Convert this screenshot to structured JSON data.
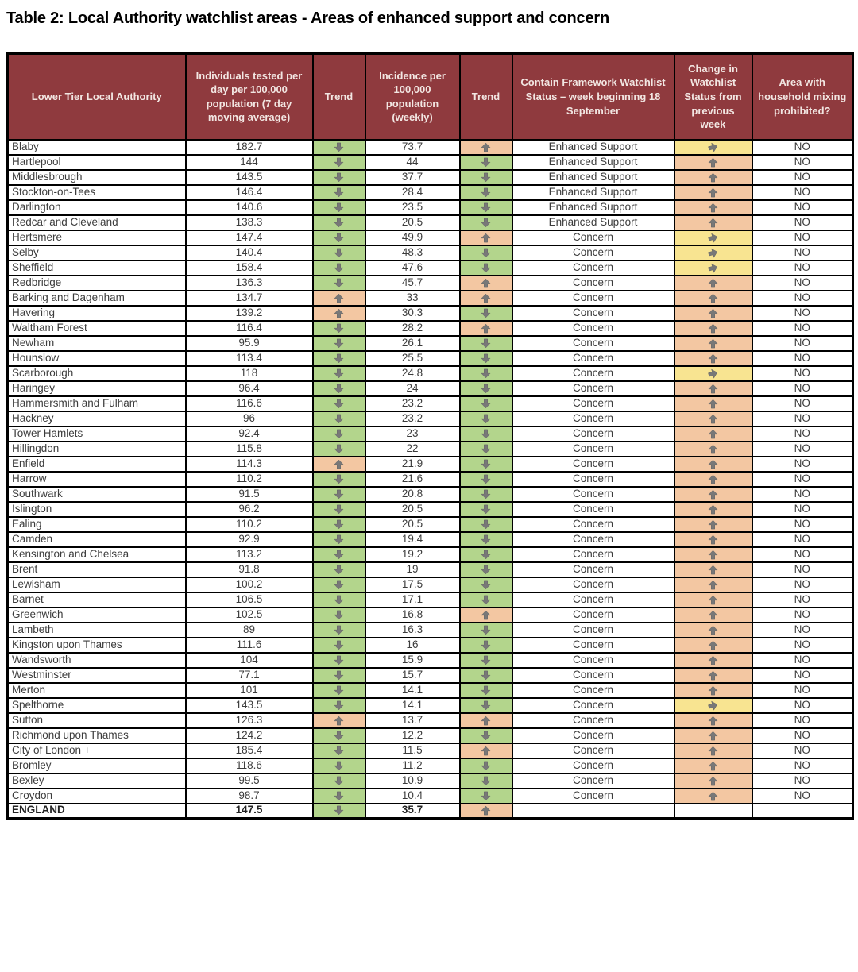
{
  "title": "Table 2: Local Authority watchlist areas - Areas of enhanced support and concern",
  "colors": {
    "header_bg": "#8f3a3e",
    "header_text": "#f2e6e2",
    "green_cell": "#b3d58c",
    "peach_cell": "#f3c7a2",
    "yellow_cell": "#f8e491",
    "arrow": "#787878",
    "grid": "#000000",
    "cell_text": "#3c3c3c"
  },
  "table": {
    "columns": [
      "Lower Tier Local Authority",
      "Individuals tested per day per 100,000 population (7 day moving average)",
      "Trend",
      "Incidence per 100,000 population (weekly)",
      "Trend",
      "Contain Framework Watchlist Status – week beginning 18 September",
      "Change in Watchlist Status from previous week",
      "Area with household mixing prohibited?"
    ],
    "rows": [
      {
        "authority": "Blaby",
        "tested": "182.7",
        "trend1": "down",
        "incidence": "73.7",
        "trend2": "up",
        "status": "Enhanced Support",
        "change": "same",
        "mixing": "NO"
      },
      {
        "authority": "Hartlepool",
        "tested": "144",
        "trend1": "down",
        "incidence": "44",
        "trend2": "down",
        "status": "Enhanced Support",
        "change": "up",
        "mixing": "NO"
      },
      {
        "authority": "Middlesbrough",
        "tested": "143.5",
        "trend1": "down",
        "incidence": "37.7",
        "trend2": "down",
        "status": "Enhanced Support",
        "change": "up",
        "mixing": "NO"
      },
      {
        "authority": "Stockton-on-Tees",
        "tested": "146.4",
        "trend1": "down",
        "incidence": "28.4",
        "trend2": "down",
        "status": "Enhanced Support",
        "change": "up",
        "mixing": "NO"
      },
      {
        "authority": "Darlington",
        "tested": "140.6",
        "trend1": "down",
        "incidence": "23.5",
        "trend2": "down",
        "status": "Enhanced Support",
        "change": "up",
        "mixing": "NO"
      },
      {
        "authority": "Redcar and Cleveland",
        "tested": "138.3",
        "trend1": "down",
        "incidence": "20.5",
        "trend2": "down",
        "status": "Enhanced Support",
        "change": "up",
        "mixing": "NO"
      },
      {
        "authority": "Hertsmere",
        "tested": "147.4",
        "trend1": "down",
        "incidence": "49.9",
        "trend2": "up",
        "status": "Concern",
        "change": "same",
        "mixing": "NO"
      },
      {
        "authority": "Selby",
        "tested": "140.4",
        "trend1": "down",
        "incidence": "48.3",
        "trend2": "down",
        "status": "Concern",
        "change": "same",
        "mixing": "NO"
      },
      {
        "authority": "Sheffield",
        "tested": "158.4",
        "trend1": "down",
        "incidence": "47.6",
        "trend2": "down",
        "status": "Concern",
        "change": "same",
        "mixing": "NO"
      },
      {
        "authority": "Redbridge",
        "tested": "136.3",
        "trend1": "down",
        "incidence": "45.7",
        "trend2": "up",
        "status": "Concern",
        "change": "up",
        "mixing": "NO"
      },
      {
        "authority": "Barking and Dagenham",
        "tested": "134.7",
        "trend1": "up",
        "incidence": "33",
        "trend2": "up",
        "status": "Concern",
        "change": "up",
        "mixing": "NO"
      },
      {
        "authority": "Havering",
        "tested": "139.2",
        "trend1": "up",
        "incidence": "30.3",
        "trend2": "down",
        "status": "Concern",
        "change": "up",
        "mixing": "NO"
      },
      {
        "authority": "Waltham Forest",
        "tested": "116.4",
        "trend1": "down",
        "incidence": "28.2",
        "trend2": "up",
        "status": "Concern",
        "change": "up",
        "mixing": "NO"
      },
      {
        "authority": "Newham",
        "tested": "95.9",
        "trend1": "down",
        "incidence": "26.1",
        "trend2": "down",
        "status": "Concern",
        "change": "up",
        "mixing": "NO"
      },
      {
        "authority": "Hounslow",
        "tested": "113.4",
        "trend1": "down",
        "incidence": "25.5",
        "trend2": "down",
        "status": "Concern",
        "change": "up",
        "mixing": "NO"
      },
      {
        "authority": "Scarborough",
        "tested": "118",
        "trend1": "down",
        "incidence": "24.8",
        "trend2": "down",
        "status": "Concern",
        "change": "same",
        "mixing": "NO"
      },
      {
        "authority": "Haringey",
        "tested": "96.4",
        "trend1": "down",
        "incidence": "24",
        "trend2": "down",
        "status": "Concern",
        "change": "up",
        "mixing": "NO"
      },
      {
        "authority": "Hammersmith and Fulham",
        "tested": "116.6",
        "trend1": "down",
        "incidence": "23.2",
        "trend2": "down",
        "status": "Concern",
        "change": "up",
        "mixing": "NO"
      },
      {
        "authority": "Hackney",
        "tested": "96",
        "trend1": "down",
        "incidence": "23.2",
        "trend2": "down",
        "status": "Concern",
        "change": "up",
        "mixing": "NO"
      },
      {
        "authority": "Tower Hamlets",
        "tested": "92.4",
        "trend1": "down",
        "incidence": "23",
        "trend2": "down",
        "status": "Concern",
        "change": "up",
        "mixing": "NO"
      },
      {
        "authority": "Hillingdon",
        "tested": "115.8",
        "trend1": "down",
        "incidence": "22",
        "trend2": "down",
        "status": "Concern",
        "change": "up",
        "mixing": "NO"
      },
      {
        "authority": "Enfield",
        "tested": "114.3",
        "trend1": "up",
        "incidence": "21.9",
        "trend2": "down",
        "status": "Concern",
        "change": "up",
        "mixing": "NO"
      },
      {
        "authority": "Harrow",
        "tested": "110.2",
        "trend1": "down",
        "incidence": "21.6",
        "trend2": "down",
        "status": "Concern",
        "change": "up",
        "mixing": "NO"
      },
      {
        "authority": "Southwark",
        "tested": "91.5",
        "trend1": "down",
        "incidence": "20.8",
        "trend2": "down",
        "status": "Concern",
        "change": "up",
        "mixing": "NO"
      },
      {
        "authority": "Islington",
        "tested": "96.2",
        "trend1": "down",
        "incidence": "20.5",
        "trend2": "down",
        "status": "Concern",
        "change": "up",
        "mixing": "NO"
      },
      {
        "authority": "Ealing",
        "tested": "110.2",
        "trend1": "down",
        "incidence": "20.5",
        "trend2": "down",
        "status": "Concern",
        "change": "up",
        "mixing": "NO"
      },
      {
        "authority": "Camden",
        "tested": "92.9",
        "trend1": "down",
        "incidence": "19.4",
        "trend2": "down",
        "status": "Concern",
        "change": "up",
        "mixing": "NO"
      },
      {
        "authority": "Kensington and Chelsea",
        "tested": "113.2",
        "trend1": "down",
        "incidence": "19.2",
        "trend2": "down",
        "status": "Concern",
        "change": "up",
        "mixing": "NO"
      },
      {
        "authority": "Brent",
        "tested": "91.8",
        "trend1": "down",
        "incidence": "19",
        "trend2": "down",
        "status": "Concern",
        "change": "up",
        "mixing": "NO"
      },
      {
        "authority": "Lewisham",
        "tested": "100.2",
        "trend1": "down",
        "incidence": "17.5",
        "trend2": "down",
        "status": "Concern",
        "change": "up",
        "mixing": "NO"
      },
      {
        "authority": "Barnet",
        "tested": "106.5",
        "trend1": "down",
        "incidence": "17.1",
        "trend2": "down",
        "status": "Concern",
        "change": "up",
        "mixing": "NO"
      },
      {
        "authority": "Greenwich",
        "tested": "102.5",
        "trend1": "down",
        "incidence": "16.8",
        "trend2": "up",
        "status": "Concern",
        "change": "up",
        "mixing": "NO"
      },
      {
        "authority": "Lambeth",
        "tested": "89",
        "trend1": "down",
        "incidence": "16.3",
        "trend2": "down",
        "status": "Concern",
        "change": "up",
        "mixing": "NO"
      },
      {
        "authority": "Kingston upon Thames",
        "tested": "111.6",
        "trend1": "down",
        "incidence": "16",
        "trend2": "down",
        "status": "Concern",
        "change": "up",
        "mixing": "NO"
      },
      {
        "authority": "Wandsworth",
        "tested": "104",
        "trend1": "down",
        "incidence": "15.9",
        "trend2": "down",
        "status": "Concern",
        "change": "up",
        "mixing": "NO"
      },
      {
        "authority": "Westminster",
        "tested": "77.1",
        "trend1": "down",
        "incidence": "15.7",
        "trend2": "down",
        "status": "Concern",
        "change": "up",
        "mixing": "NO"
      },
      {
        "authority": "Merton",
        "tested": "101",
        "trend1": "down",
        "incidence": "14.1",
        "trend2": "down",
        "status": "Concern",
        "change": "up",
        "mixing": "NO"
      },
      {
        "authority": "Spelthorne",
        "tested": "143.5",
        "trend1": "down",
        "incidence": "14.1",
        "trend2": "down",
        "status": "Concern",
        "change": "same",
        "mixing": "NO"
      },
      {
        "authority": "Sutton",
        "tested": "126.3",
        "trend1": "up",
        "incidence": "13.7",
        "trend2": "up",
        "status": "Concern",
        "change": "up",
        "mixing": "NO"
      },
      {
        "authority": "Richmond upon Thames",
        "tested": "124.2",
        "trend1": "down",
        "incidence": "12.2",
        "trend2": "down",
        "status": "Concern",
        "change": "up",
        "mixing": "NO"
      },
      {
        "authority": "City of London +",
        "tested": "185.4",
        "trend1": "down",
        "incidence": "11.5",
        "trend2": "up",
        "status": "Concern",
        "change": "up",
        "mixing": "NO"
      },
      {
        "authority": "Bromley",
        "tested": "118.6",
        "trend1": "down",
        "incidence": "11.2",
        "trend2": "down",
        "status": "Concern",
        "change": "up",
        "mixing": "NO"
      },
      {
        "authority": "Bexley",
        "tested": "99.5",
        "trend1": "down",
        "incidence": "10.9",
        "trend2": "down",
        "status": "Concern",
        "change": "up",
        "mixing": "NO"
      },
      {
        "authority": "Croydon",
        "tested": "98.7",
        "trend1": "down",
        "incidence": "10.4",
        "trend2": "down",
        "status": "Concern",
        "change": "up",
        "mixing": "NO"
      },
      {
        "authority": "ENGLAND",
        "tested": "147.5",
        "trend1": "down",
        "incidence": "35.7",
        "trend2": "up",
        "status": "",
        "change": "",
        "mixing": "",
        "is_total": true
      }
    ]
  }
}
